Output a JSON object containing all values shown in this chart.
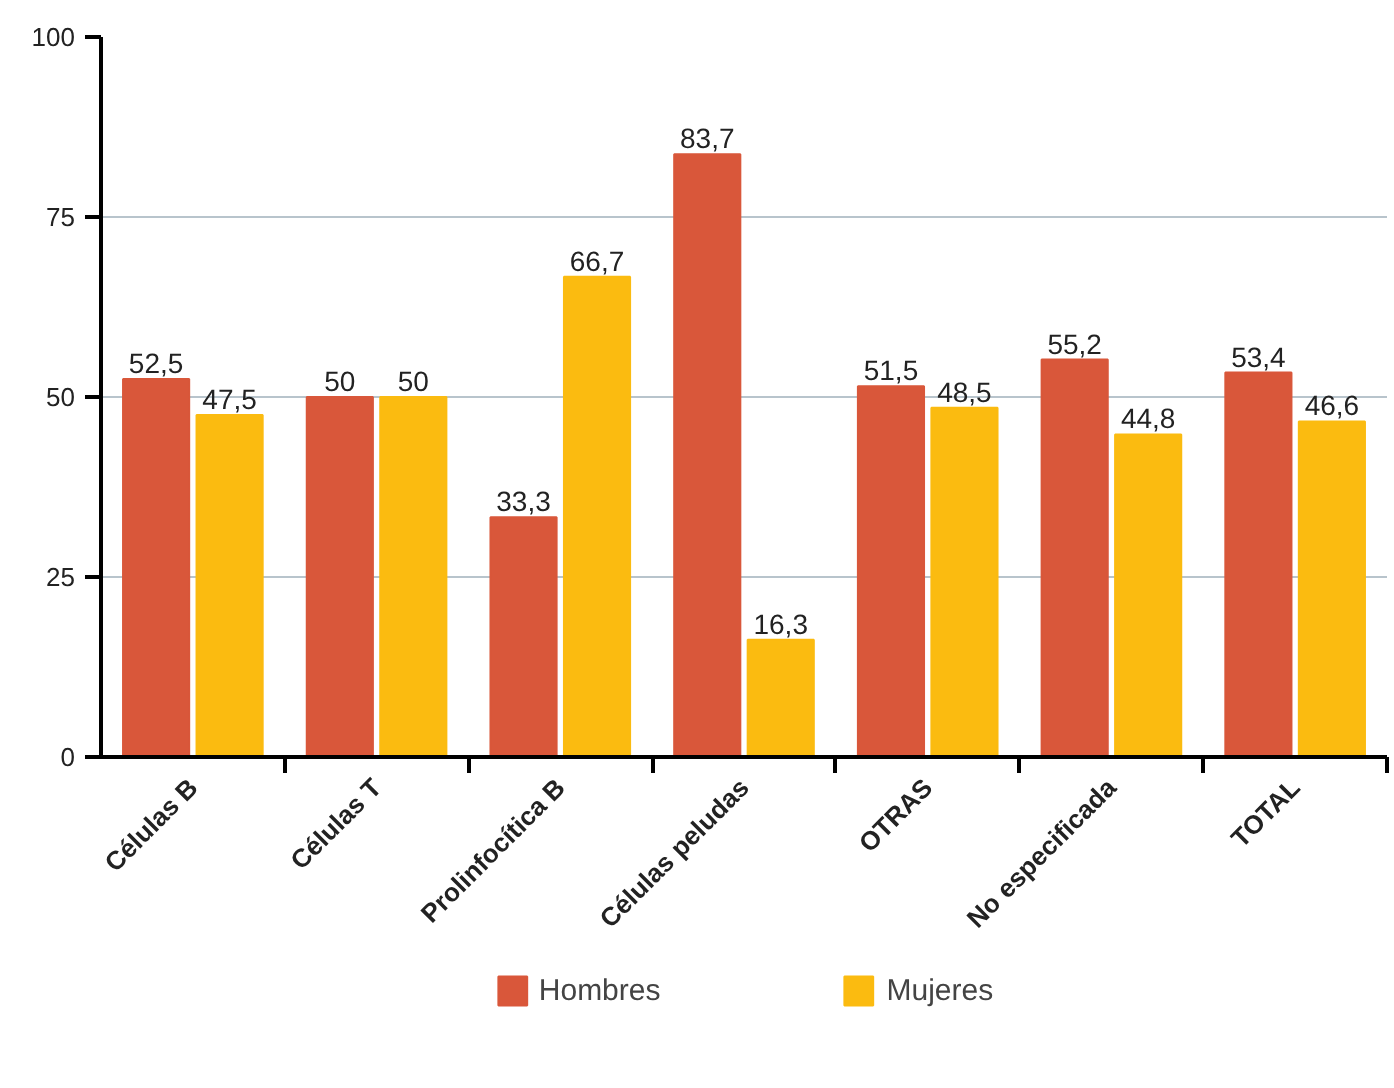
{
  "chart_data": {
    "type": "bar",
    "categories": [
      "Células B",
      "Células T",
      "Prolinfocítica B",
      "Células peludas",
      "OTRAS",
      "No especificada",
      "TOTAL"
    ],
    "series": [
      {
        "name": "Hombres",
        "color": "#d9573a",
        "values": [
          52.5,
          50,
          33.3,
          83.7,
          51.5,
          55.2,
          53.4
        ],
        "value_labels": [
          "52,5",
          "50",
          "33,3",
          "83,7",
          "51,5",
          "55,2",
          "53,4"
        ]
      },
      {
        "name": "Mujeres",
        "color": "#fbbb10",
        "values": [
          47.5,
          50,
          66.7,
          16.3,
          48.5,
          44.8,
          46.6
        ],
        "value_labels": [
          "47,5",
          "50",
          "66,7",
          "16,3",
          "48,5",
          "44,8",
          "46,6"
        ]
      }
    ],
    "ylim": [
      0,
      100
    ],
    "yticks": [
      0,
      25,
      50,
      75,
      100
    ],
    "grid": "y",
    "legend": "bottom"
  }
}
